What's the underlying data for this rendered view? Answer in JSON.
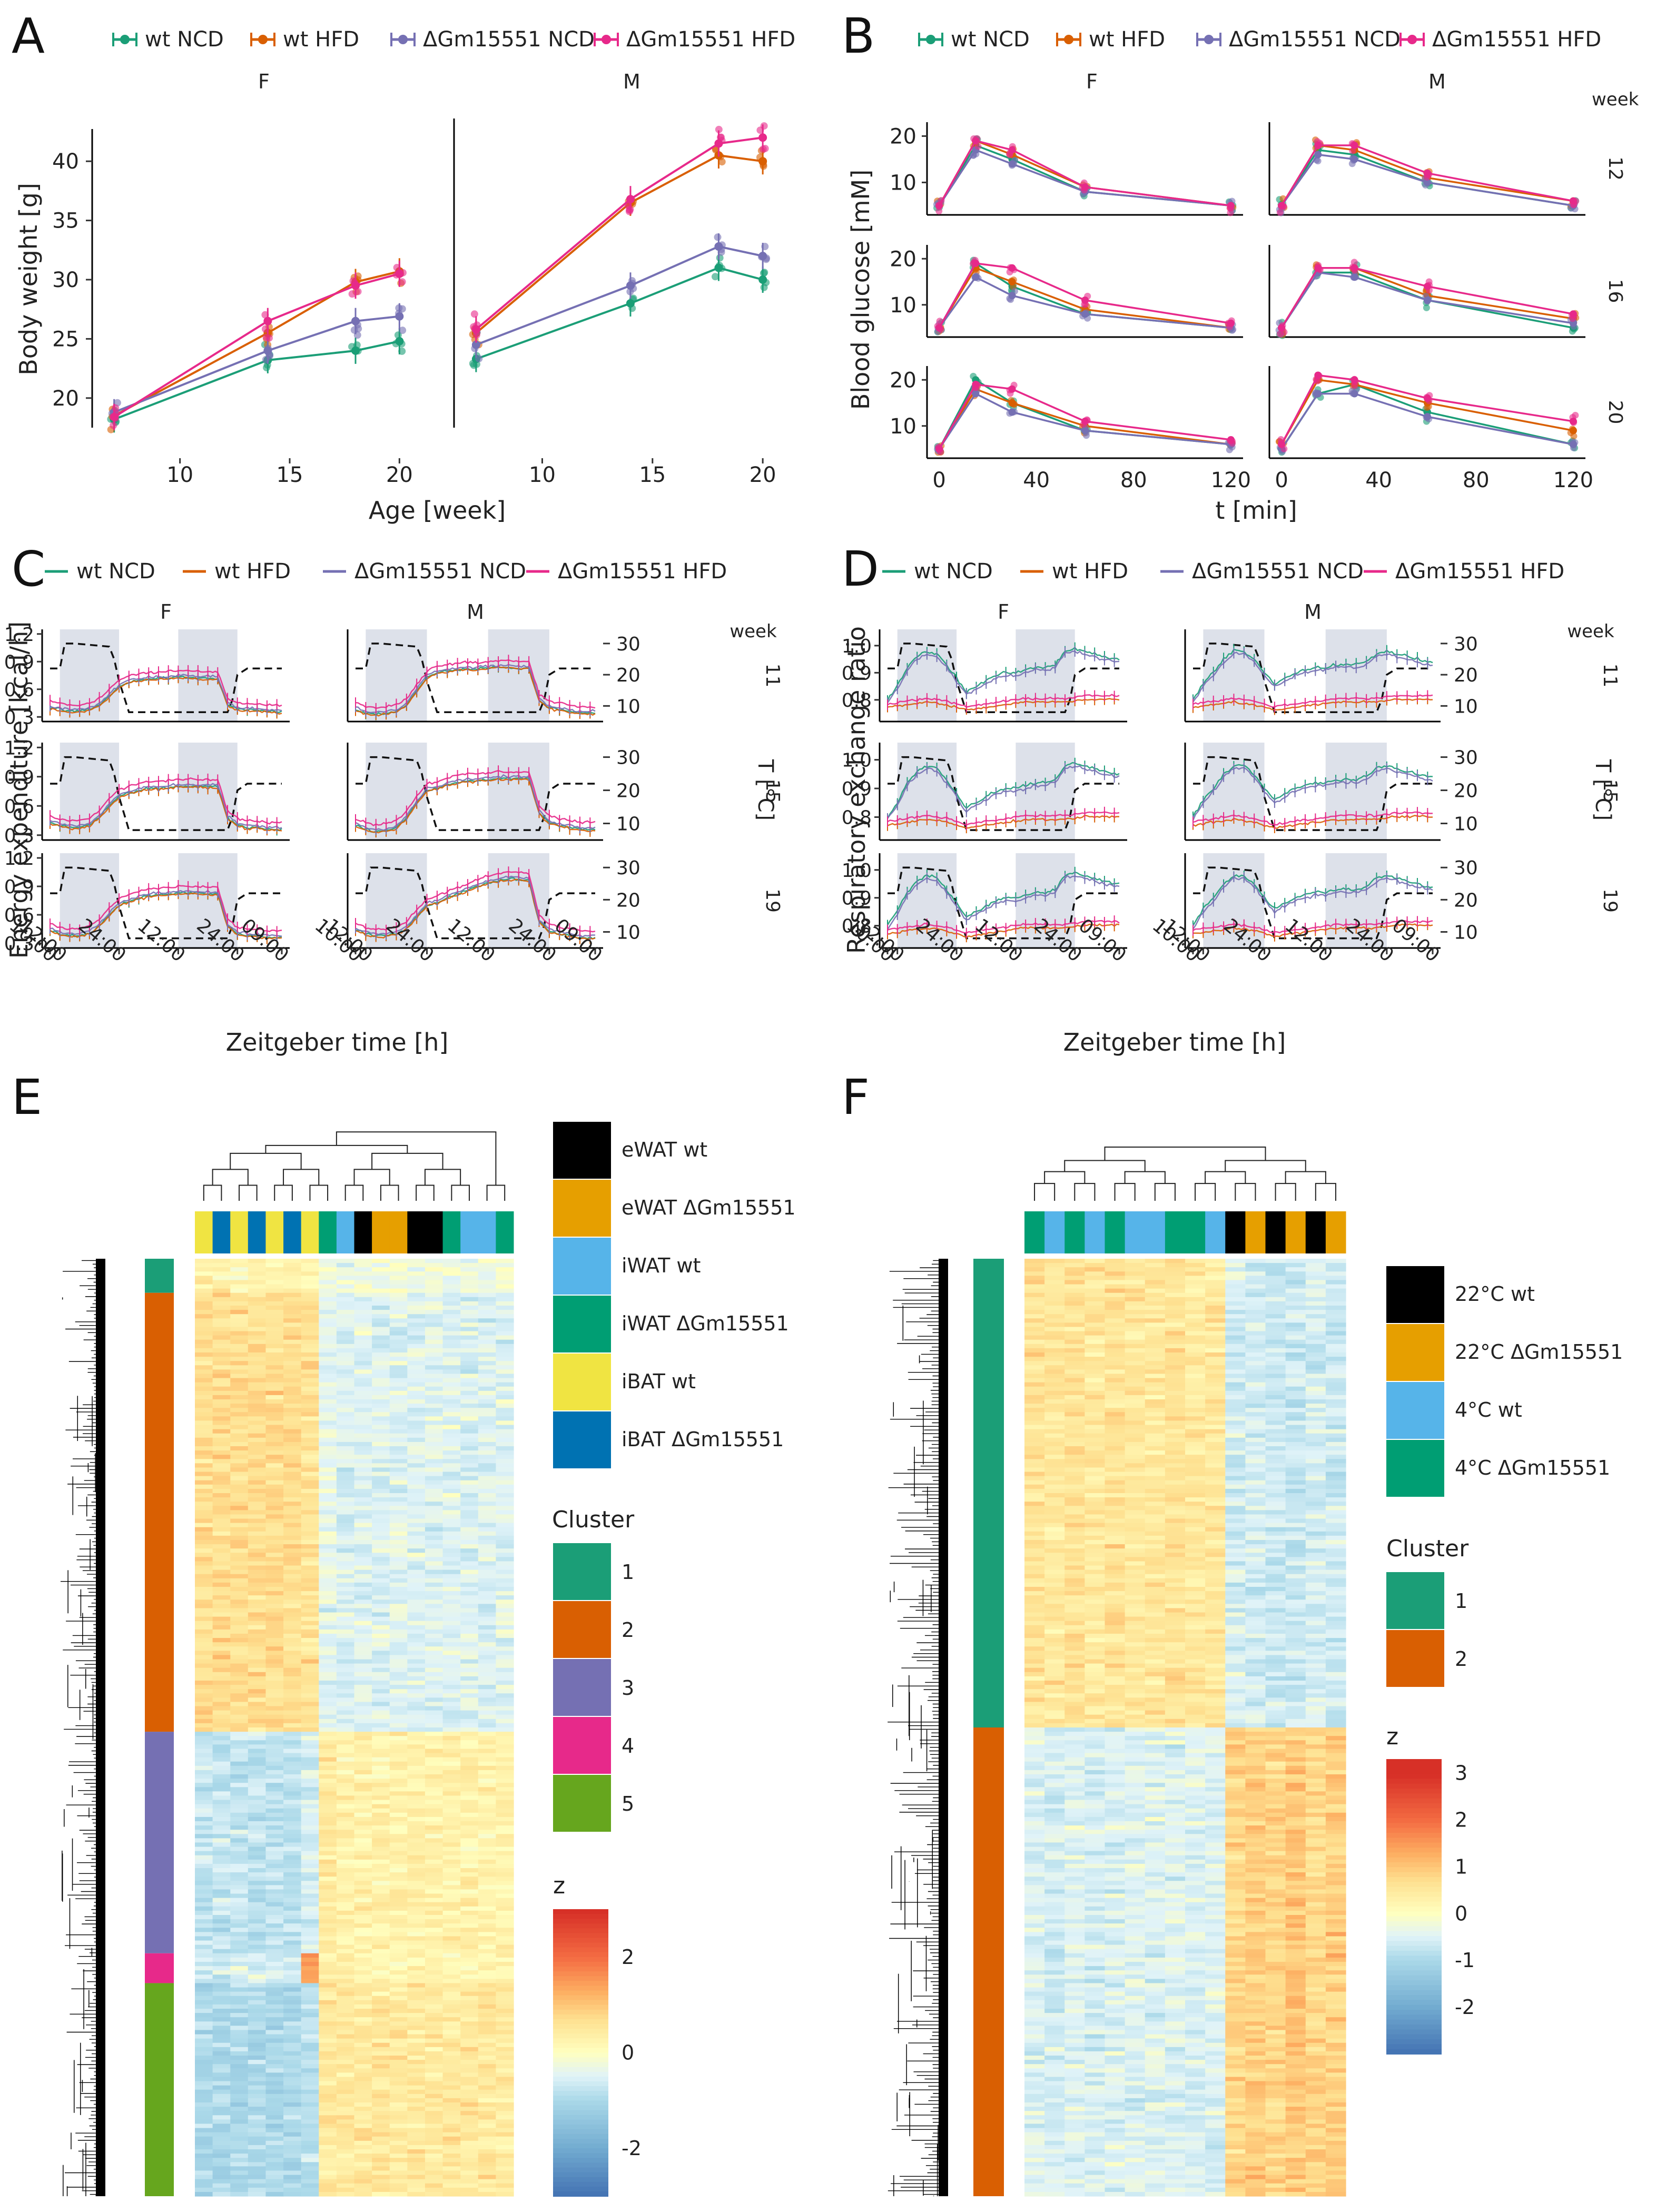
{
  "colors": {
    "wt_ncd": "#1b9e77",
    "wt_hfd": "#d95f02",
    "ko_ncd": "#7570b3",
    "ko_hfd": "#e7298a",
    "axis": "#000000",
    "night_shade": "#dde1ea",
    "tissue_ewat_wt": "#000000",
    "tissue_ewat_ko": "#e69f00",
    "tissue_iwat_wt": "#56b4e9",
    "tissue_iwat_ko": "#009e73",
    "tissue_ibat_wt": "#f0e442",
    "tissue_ibat_ko": "#0072b2",
    "cluster1": "#1b9e77",
    "cluster2": "#d95f02",
    "cluster3": "#7570b3",
    "cluster4": "#e7298a",
    "cluster5": "#66a61e"
  },
  "legend_groups": [
    "wt NCD",
    "wt HFD",
    "ΔGm15551 NCD",
    "ΔGm15551 HFD"
  ],
  "panels": {
    "A": {
      "letter": "A"
    },
    "B": {
      "letter": "B"
    },
    "C": {
      "letter": "C"
    },
    "D": {
      "letter": "D"
    },
    "E": {
      "letter": "E"
    },
    "F": {
      "letter": "F"
    }
  },
  "chart_data": [
    {
      "id": "A",
      "type": "line",
      "facets": [
        "F",
        "M"
      ],
      "xlabel": "Age [week]",
      "ylabel": "Body weight [g]",
      "xlim": [
        6,
        21
      ],
      "ylim": [
        17.5,
        42.5
      ],
      "x_ticks": [
        10,
        15,
        20
      ],
      "y_ticks": [
        20,
        25,
        30,
        35,
        40
      ],
      "x": [
        7,
        14,
        18,
        20
      ],
      "series": [
        {
          "name": "wt NCD",
          "facet": "F",
          "values": [
            18.2,
            23.2,
            24.0,
            24.8
          ]
        },
        {
          "name": "wt HFD",
          "facet": "F",
          "values": [
            18.5,
            25.5,
            29.8,
            30.7
          ]
        },
        {
          "name": "ΔGm15551 NCD",
          "facet": "F",
          "values": [
            18.8,
            24.0,
            26.5,
            26.9
          ]
        },
        {
          "name": "ΔGm15551 HFD",
          "facet": "F",
          "values": [
            18.4,
            26.5,
            29.5,
            30.5
          ]
        },
        {
          "name": "wt NCD",
          "facet": "M",
          "values": [
            23.3,
            28.0,
            31.0,
            30.0
          ]
        },
        {
          "name": "wt HFD",
          "facet": "M",
          "values": [
            25.5,
            36.5,
            40.5,
            40.0
          ]
        },
        {
          "name": "ΔGm15551 NCD",
          "facet": "M",
          "values": [
            24.5,
            29.5,
            32.8,
            32.0
          ]
        },
        {
          "name": "ΔGm15551 HFD",
          "facet": "M",
          "values": [
            25.8,
            36.8,
            41.5,
            42.0
          ]
        }
      ]
    },
    {
      "id": "B",
      "type": "line",
      "facets": [
        "F",
        "M"
      ],
      "rows": [
        "12",
        "16",
        "20"
      ],
      "row_title": "week",
      "xlabel": "t [min]",
      "ylabel": "Blood glucose [mM]",
      "xlim": [
        -5,
        125
      ],
      "ylim": [
        3,
        23
      ],
      "x_ticks": [
        0,
        40,
        80,
        120
      ],
      "y_ticks": [
        10,
        20
      ],
      "x": [
        0,
        15,
        30,
        60,
        120
      ],
      "series": [
        {
          "name": "wt NCD",
          "facet": "F",
          "row": "12",
          "values": [
            5,
            18,
            15,
            8,
            5
          ]
        },
        {
          "name": "wt HFD",
          "facet": "F",
          "row": "12",
          "values": [
            5,
            19,
            16,
            9,
            5
          ]
        },
        {
          "name": "ΔGm15551 NCD",
          "facet": "F",
          "row": "12",
          "values": [
            5,
            17,
            14,
            8,
            5
          ]
        },
        {
          "name": "ΔGm15551 HFD",
          "facet": "F",
          "row": "12",
          "values": [
            5,
            19,
            17,
            9,
            5
          ]
        },
        {
          "name": "wt NCD",
          "facet": "M",
          "row": "12",
          "values": [
            5,
            17,
            16,
            10,
            5
          ]
        },
        {
          "name": "wt HFD",
          "facet": "M",
          "row": "12",
          "values": [
            5,
            18,
            17,
            11,
            6
          ]
        },
        {
          "name": "ΔGm15551 NCD",
          "facet": "M",
          "row": "12",
          "values": [
            5,
            16,
            15,
            10,
            5
          ]
        },
        {
          "name": "ΔGm15551 HFD",
          "facet": "M",
          "row": "12",
          "values": [
            5,
            18,
            18,
            12,
            6
          ]
        },
        {
          "name": "wt NCD",
          "facet": "F",
          "row": "16",
          "values": [
            5,
            19,
            14,
            8,
            5
          ]
        },
        {
          "name": "wt HFD",
          "facet": "F",
          "row": "16",
          "values": [
            5,
            18,
            15,
            9,
            5
          ]
        },
        {
          "name": "ΔGm15551 NCD",
          "facet": "F",
          "row": "16",
          "values": [
            5,
            16,
            12,
            8,
            5
          ]
        },
        {
          "name": "ΔGm15551 HFD",
          "facet": "F",
          "row": "16",
          "values": [
            5,
            19,
            18,
            11,
            6
          ]
        },
        {
          "name": "wt NCD",
          "facet": "M",
          "row": "16",
          "values": [
            5,
            17,
            17,
            11,
            5
          ]
        },
        {
          "name": "wt HFD",
          "facet": "M",
          "row": "16",
          "values": [
            5,
            18,
            18,
            12,
            7
          ]
        },
        {
          "name": "ΔGm15551 NCD",
          "facet": "M",
          "row": "16",
          "values": [
            5,
            17,
            16,
            11,
            6
          ]
        },
        {
          "name": "ΔGm15551 HFD",
          "facet": "M",
          "row": "16",
          "values": [
            5,
            18,
            18,
            14,
            8
          ]
        },
        {
          "name": "wt NCD",
          "facet": "F",
          "row": "20",
          "values": [
            5,
            20,
            15,
            9,
            6
          ]
        },
        {
          "name": "wt HFD",
          "facet": "F",
          "row": "20",
          "values": [
            5,
            18,
            15,
            10,
            6
          ]
        },
        {
          "name": "ΔGm15551 NCD",
          "facet": "F",
          "row": "20",
          "values": [
            5,
            17,
            13,
            9,
            6
          ]
        },
        {
          "name": "ΔGm15551 HFD",
          "facet": "F",
          "row": "20",
          "values": [
            5,
            19,
            18,
            11,
            7
          ]
        },
        {
          "name": "wt NCD",
          "facet": "M",
          "row": "20",
          "values": [
            5,
            17,
            19,
            13,
            6
          ]
        },
        {
          "name": "wt HFD",
          "facet": "M",
          "row": "20",
          "values": [
            6,
            20,
            19,
            15,
            9
          ]
        },
        {
          "name": "ΔGm15551 NCD",
          "facet": "M",
          "row": "20",
          "values": [
            5,
            17,
            17,
            12,
            6
          ]
        },
        {
          "name": "ΔGm15551 HFD",
          "facet": "M",
          "row": "20",
          "values": [
            6,
            21,
            20,
            16,
            11
          ]
        }
      ]
    },
    {
      "id": "C",
      "type": "line",
      "facets": [
        "F",
        "M"
      ],
      "rows": [
        "11",
        "15",
        "19"
      ],
      "row_title": "week",
      "xlabel": "Zeitgeber time [h]",
      "ylabel": "Energy expenditure [kcal/h]",
      "y2label": "T [°C]",
      "ylim": [
        0.25,
        1.25
      ],
      "y_ticks": [
        "1.2",
        "0.9",
        "0.6",
        "0.3"
      ],
      "y2_ticks": [
        "30",
        "20",
        "10"
      ],
      "x_ticks": [
        "10:00",
        "12:00",
        "24:00",
        "12:00",
        "24:00",
        "09:00"
      ],
      "night_phases_h": [
        [
          12,
          24
        ],
        [
          36,
          48
        ]
      ],
      "xlim_h": [
        10,
        57
      ],
      "temperature_profile_c": {
        "t": [
          10,
          12,
          13,
          15,
          22,
          23,
          24,
          26,
          35,
          36,
          46,
          47,
          48,
          50,
          56
        ],
        "v": [
          22,
          22,
          30,
          30,
          29,
          25,
          18,
          8,
          8,
          8,
          8,
          12,
          20,
          22,
          22
        ]
      },
      "series_profile": {
        "t": [
          10,
          12,
          14,
          16,
          18,
          20,
          22,
          24,
          26,
          28,
          30,
          32,
          34,
          36,
          38,
          40,
          42,
          44,
          46,
          48,
          50,
          52,
          54,
          56
        ],
        "F_11": [
          0.42,
          0.4,
          0.38,
          0.38,
          0.4,
          0.45,
          0.55,
          0.65,
          0.7,
          0.72,
          0.73,
          0.74,
          0.74,
          0.75,
          0.75,
          0.74,
          0.74,
          0.74,
          0.45,
          0.4,
          0.4,
          0.39,
          0.38,
          0.38
        ],
        "M_11": [
          0.4,
          0.36,
          0.35,
          0.36,
          0.38,
          0.45,
          0.6,
          0.75,
          0.8,
          0.82,
          0.83,
          0.84,
          0.84,
          0.85,
          0.86,
          0.86,
          0.85,
          0.85,
          0.5,
          0.42,
          0.4,
          0.38,
          0.36,
          0.36
        ],
        "F_15": [
          0.45,
          0.42,
          0.4,
          0.4,
          0.42,
          0.5,
          0.62,
          0.72,
          0.75,
          0.78,
          0.8,
          0.8,
          0.81,
          0.82,
          0.82,
          0.82,
          0.82,
          0.82,
          0.5,
          0.42,
          0.4,
          0.4,
          0.38,
          0.38
        ],
        "M_15": [
          0.42,
          0.38,
          0.36,
          0.37,
          0.4,
          0.5,
          0.65,
          0.78,
          0.8,
          0.84,
          0.86,
          0.88,
          0.88,
          0.89,
          0.9,
          0.9,
          0.9,
          0.9,
          0.55,
          0.45,
          0.42,
          0.4,
          0.38,
          0.38
        ],
        "F_19": [
          0.46,
          0.42,
          0.4,
          0.4,
          0.43,
          0.5,
          0.62,
          0.72,
          0.76,
          0.8,
          0.82,
          0.83,
          0.84,
          0.85,
          0.85,
          0.85,
          0.84,
          0.84,
          0.5,
          0.42,
          0.4,
          0.4,
          0.38,
          0.38
        ],
        "M_19": [
          0.46,
          0.42,
          0.4,
          0.4,
          0.42,
          0.48,
          0.6,
          0.72,
          0.75,
          0.8,
          0.84,
          0.88,
          0.92,
          0.96,
          0.98,
          1.0,
          1.0,
          0.98,
          0.55,
          0.45,
          0.42,
          0.4,
          0.38,
          0.38
        ]
      },
      "group_offsets": {
        "wt NCD": -0.02,
        "wt HFD": -0.03,
        "ΔGm15551 NCD": 0.0,
        "ΔGm15551 HFD": 0.05
      }
    },
    {
      "id": "D",
      "type": "line",
      "facets": [
        "F",
        "M"
      ],
      "rows": [
        "11",
        "15",
        "19"
      ],
      "row_title": "week",
      "xlabel": "Zeitgeber time [h]",
      "ylabel": "Respiratory exchange ratio",
      "y2label": "T [°C]",
      "ylim": [
        0.72,
        1.06
      ],
      "y_ticks": [
        "1.0",
        "0.9",
        "0.8"
      ],
      "y2_ticks": [
        "30",
        "20",
        "10"
      ],
      "x_ticks": [
        "10:00",
        "12:00",
        "24:00",
        "12:00",
        "24:00",
        "09:00"
      ],
      "night_phases_h": [
        [
          12,
          24
        ],
        [
          36,
          48
        ]
      ],
      "xlim_h": [
        10,
        57
      ],
      "ncd_profile": {
        "t": [
          10,
          12,
          14,
          16,
          18,
          20,
          22,
          24,
          26,
          28,
          30,
          32,
          34,
          36,
          38,
          40,
          42,
          44,
          46,
          48,
          50,
          52,
          54,
          56
        ],
        "F": [
          0.8,
          0.85,
          0.92,
          0.96,
          0.98,
          0.97,
          0.93,
          0.88,
          0.83,
          0.85,
          0.87,
          0.89,
          0.9,
          0.9,
          0.91,
          0.92,
          0.92,
          0.93,
          0.98,
          0.99,
          0.98,
          0.97,
          0.96,
          0.95
        ],
        "M": [
          0.8,
          0.86,
          0.9,
          0.95,
          0.98,
          0.98,
          0.95,
          0.9,
          0.86,
          0.88,
          0.9,
          0.91,
          0.92,
          0.92,
          0.93,
          0.93,
          0.93,
          0.94,
          0.97,
          0.98,
          0.97,
          0.96,
          0.95,
          0.94
        ]
      },
      "hfd_profile": {
        "t": [
          10,
          14,
          18,
          22,
          26,
          30,
          34,
          38,
          42,
          46,
          50,
          54,
          56
        ],
        "v": [
          0.78,
          0.79,
          0.8,
          0.79,
          0.77,
          0.78,
          0.79,
          0.8,
          0.8,
          0.8,
          0.81,
          0.81,
          0.81
        ]
      },
      "group_offsets": {
        "wt NCD": 0.0,
        "wt HFD": -0.008,
        "ΔGm15551 NCD": -0.01,
        "ΔGm15551 HFD": 0.005
      }
    },
    {
      "id": "E",
      "type": "heatmap",
      "legend_tissue": [
        "eWAT wt",
        "eWAT ΔGm15551",
        "iWAT wt",
        "iWAT ΔGm15551",
        "iBAT wt",
        "iBAT ΔGm15551"
      ],
      "column_annotation": [
        "iBAT wt",
        "iBAT ΔGm15551",
        "iBAT wt",
        "iBAT ΔGm15551",
        "iBAT wt",
        "iBAT ΔGm15551",
        "iBAT wt",
        "iWAT ΔGm15551",
        "iWAT wt",
        "eWAT wt",
        "eWAT ΔGm15551",
        "eWAT ΔGm15551",
        "eWAT wt",
        "eWAT wt",
        "iWAT ΔGm15551",
        "iWAT wt",
        "iWAT wt",
        "iWAT ΔGm15551"
      ],
      "cluster_title": "Cluster",
      "clusters": [
        "1",
        "2",
        "3",
        "4",
        "5"
      ],
      "cluster_fractions": [
        0.035,
        0.47,
        0.235,
        0.03,
        0.23
      ],
      "cluster_means": [
        [
          0.3,
          0.3,
          0.2,
          0.3,
          0.2,
          0.3,
          0.2,
          -0.2,
          -0.3,
          -0.2,
          -0.3,
          -0.2,
          -0.3,
          -0.2,
          -0.3,
          -0.2,
          -0.3,
          -0.2
        ],
        [
          0.7,
          0.7,
          0.7,
          0.7,
          0.7,
          0.7,
          0.6,
          -0.4,
          -0.5,
          -0.5,
          -0.5,
          -0.5,
          -0.5,
          -0.5,
          -0.5,
          -0.5,
          -0.5,
          -0.5
        ],
        [
          -0.8,
          -0.8,
          -0.8,
          -0.8,
          -0.8,
          -0.8,
          -0.6,
          0.4,
          0.3,
          0.3,
          0.3,
          0.3,
          0.3,
          0.3,
          0.3,
          0.3,
          0.3,
          0.3
        ],
        [
          -0.6,
          -0.6,
          -0.6,
          -0.6,
          -0.6,
          -0.6,
          1.5,
          0.4,
          0.3,
          0.2,
          0.2,
          0.2,
          0.2,
          0.2,
          0.2,
          0.2,
          0.2,
          0.2
        ],
        [
          -1.0,
          -1.0,
          -1.0,
          -1.0,
          -1.0,
          -1.0,
          -0.9,
          0.5,
          0.5,
          0.5,
          0.5,
          0.5,
          0.5,
          0.5,
          0.5,
          0.5,
          0.5,
          0.5
        ]
      ],
      "scale_title": "z",
      "scale_ticks": [
        "2",
        "0",
        "-2"
      ]
    },
    {
      "id": "F",
      "type": "heatmap",
      "legend_condition": [
        "22°C wt",
        "22°C ΔGm15551",
        "4°C wt",
        "4°C ΔGm15551"
      ],
      "column_annotation": [
        "4°C ΔGm15551",
        "4°C wt",
        "4°C ΔGm15551",
        "4°C wt",
        "4°C ΔGm15551",
        "4°C wt",
        "4°C wt",
        "4°C ΔGm15551",
        "4°C ΔGm15551",
        "4°C wt",
        "22°C wt",
        "22°C ΔGm15551",
        "22°C wt",
        "22°C ΔGm15551",
        "22°C wt",
        "22°C ΔGm15551"
      ],
      "cluster_title": "Cluster",
      "clusters": [
        "1",
        "2"
      ],
      "cluster_fractions": [
        0.5,
        0.5
      ],
      "cluster_means": [
        [
          0.6,
          0.5,
          0.6,
          0.5,
          0.6,
          0.5,
          0.5,
          0.6,
          0.5,
          0.5,
          -0.6,
          -0.6,
          -0.7,
          -0.7,
          -0.6,
          -0.7
        ],
        [
          -0.5,
          -0.6,
          -0.5,
          -0.6,
          -0.5,
          -0.5,
          -0.5,
          -0.5,
          -0.5,
          -0.5,
          0.8,
          0.9,
          0.8,
          1.0,
          0.8,
          0.9
        ]
      ],
      "scale_title": "z",
      "scale_ticks": [
        "3",
        "2",
        "1",
        "0",
        "-1",
        "-2"
      ]
    }
  ]
}
